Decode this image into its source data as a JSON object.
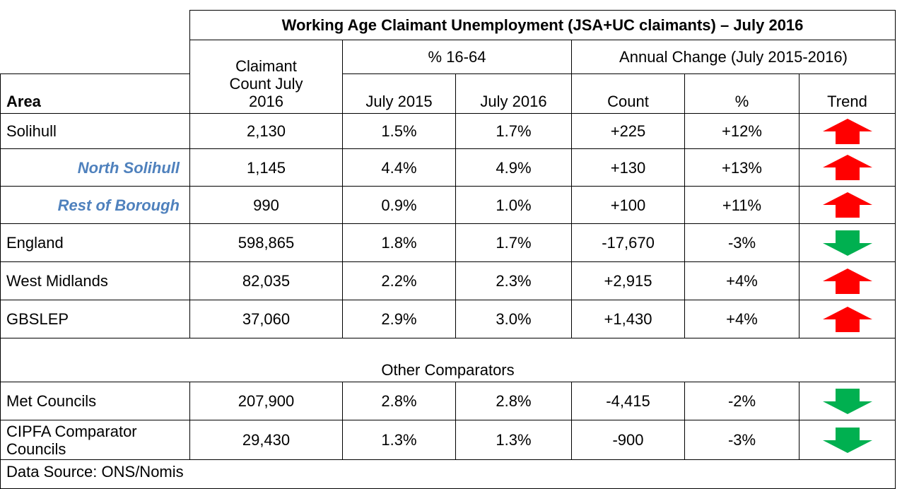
{
  "table": {
    "title": "Working Age Claimant Unemployment (JSA+UC claimants) – July 2016",
    "headers": {
      "claimant": "Claimant Count July 2016",
      "pct_group": "% 16-64",
      "change_group": "Annual Change (July 2015-2016)",
      "area": "Area",
      "july2015": "July 2015",
      "july2016": "July 2016",
      "count": "Count",
      "pct": "%",
      "trend": "Trend"
    },
    "rows": [
      [
        "Solihull",
        "2,130",
        "1.5%",
        "1.7%",
        "+225",
        "+12%"
      ],
      [
        "North Solihull",
        "1,145",
        "4.4%",
        "4.9%",
        "+130",
        "+13%"
      ],
      [
        "Rest of Borough",
        "990",
        "0.9%",
        "1.0%",
        "+100",
        "+11%"
      ],
      [
        "England",
        "598,865",
        "1.8%",
        "1.7%",
        "-17,670",
        "-3%"
      ],
      [
        "West Midlands",
        "82,035",
        "2.2%",
        "2.3%",
        "+2,915",
        "+4%"
      ],
      [
        "GBSLEP",
        "37,060",
        "2.9%",
        "3.0%",
        "+1,430",
        "+4%"
      ]
    ],
    "section": "Other Comparators",
    "rows2": [
      [
        "Met Councils",
        "207,900",
        "2.8%",
        "2.8%",
        "-4,415",
        "-2%"
      ],
      [
        "CIPFA Comparator Councils",
        "29,430",
        "1.3%",
        "1.3%",
        "-900",
        "-3%"
      ]
    ],
    "source": "Data Source: ONS/Nomis"
  }
}
